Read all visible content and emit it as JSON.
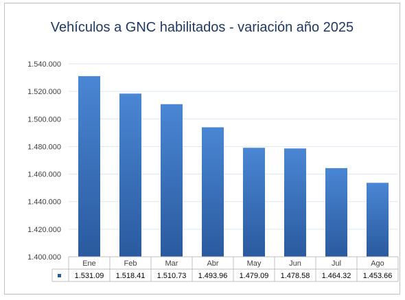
{
  "chart_data": {
    "type": "bar",
    "title": "Vehículos a GNC habilitados - variación año 2025",
    "categories": [
      "Ene",
      "Feb",
      "Mar",
      "Abr",
      "May",
      "Jun",
      "Jul",
      "Ago"
    ],
    "values": [
      1531090,
      1518410,
      1510730,
      1493960,
      1479090,
      1478580,
      1464320,
      1453660
    ],
    "data_table_labels": [
      "1.531.09",
      "1.518.41",
      "1.510.73",
      "1.493.96",
      "1.479.09",
      "1.478.58",
      "1.464.32",
      "1.453.66"
    ],
    "ylim": [
      1400000,
      1540000
    ],
    "yticks": [
      1400000,
      1420000,
      1440000,
      1460000,
      1480000,
      1500000,
      1520000,
      1540000
    ],
    "ytick_labels": [
      "1.400.000",
      "1.420.000",
      "1.440.000",
      "1.460.000",
      "1.480.000",
      "1.500.000",
      "1.520.000",
      "1.540.000"
    ],
    "grid": true,
    "bar_color_top": "#4a86d4",
    "bar_color_bottom": "#2a5a9e",
    "gridline_color": "#d9e6f2",
    "data_table": true
  }
}
